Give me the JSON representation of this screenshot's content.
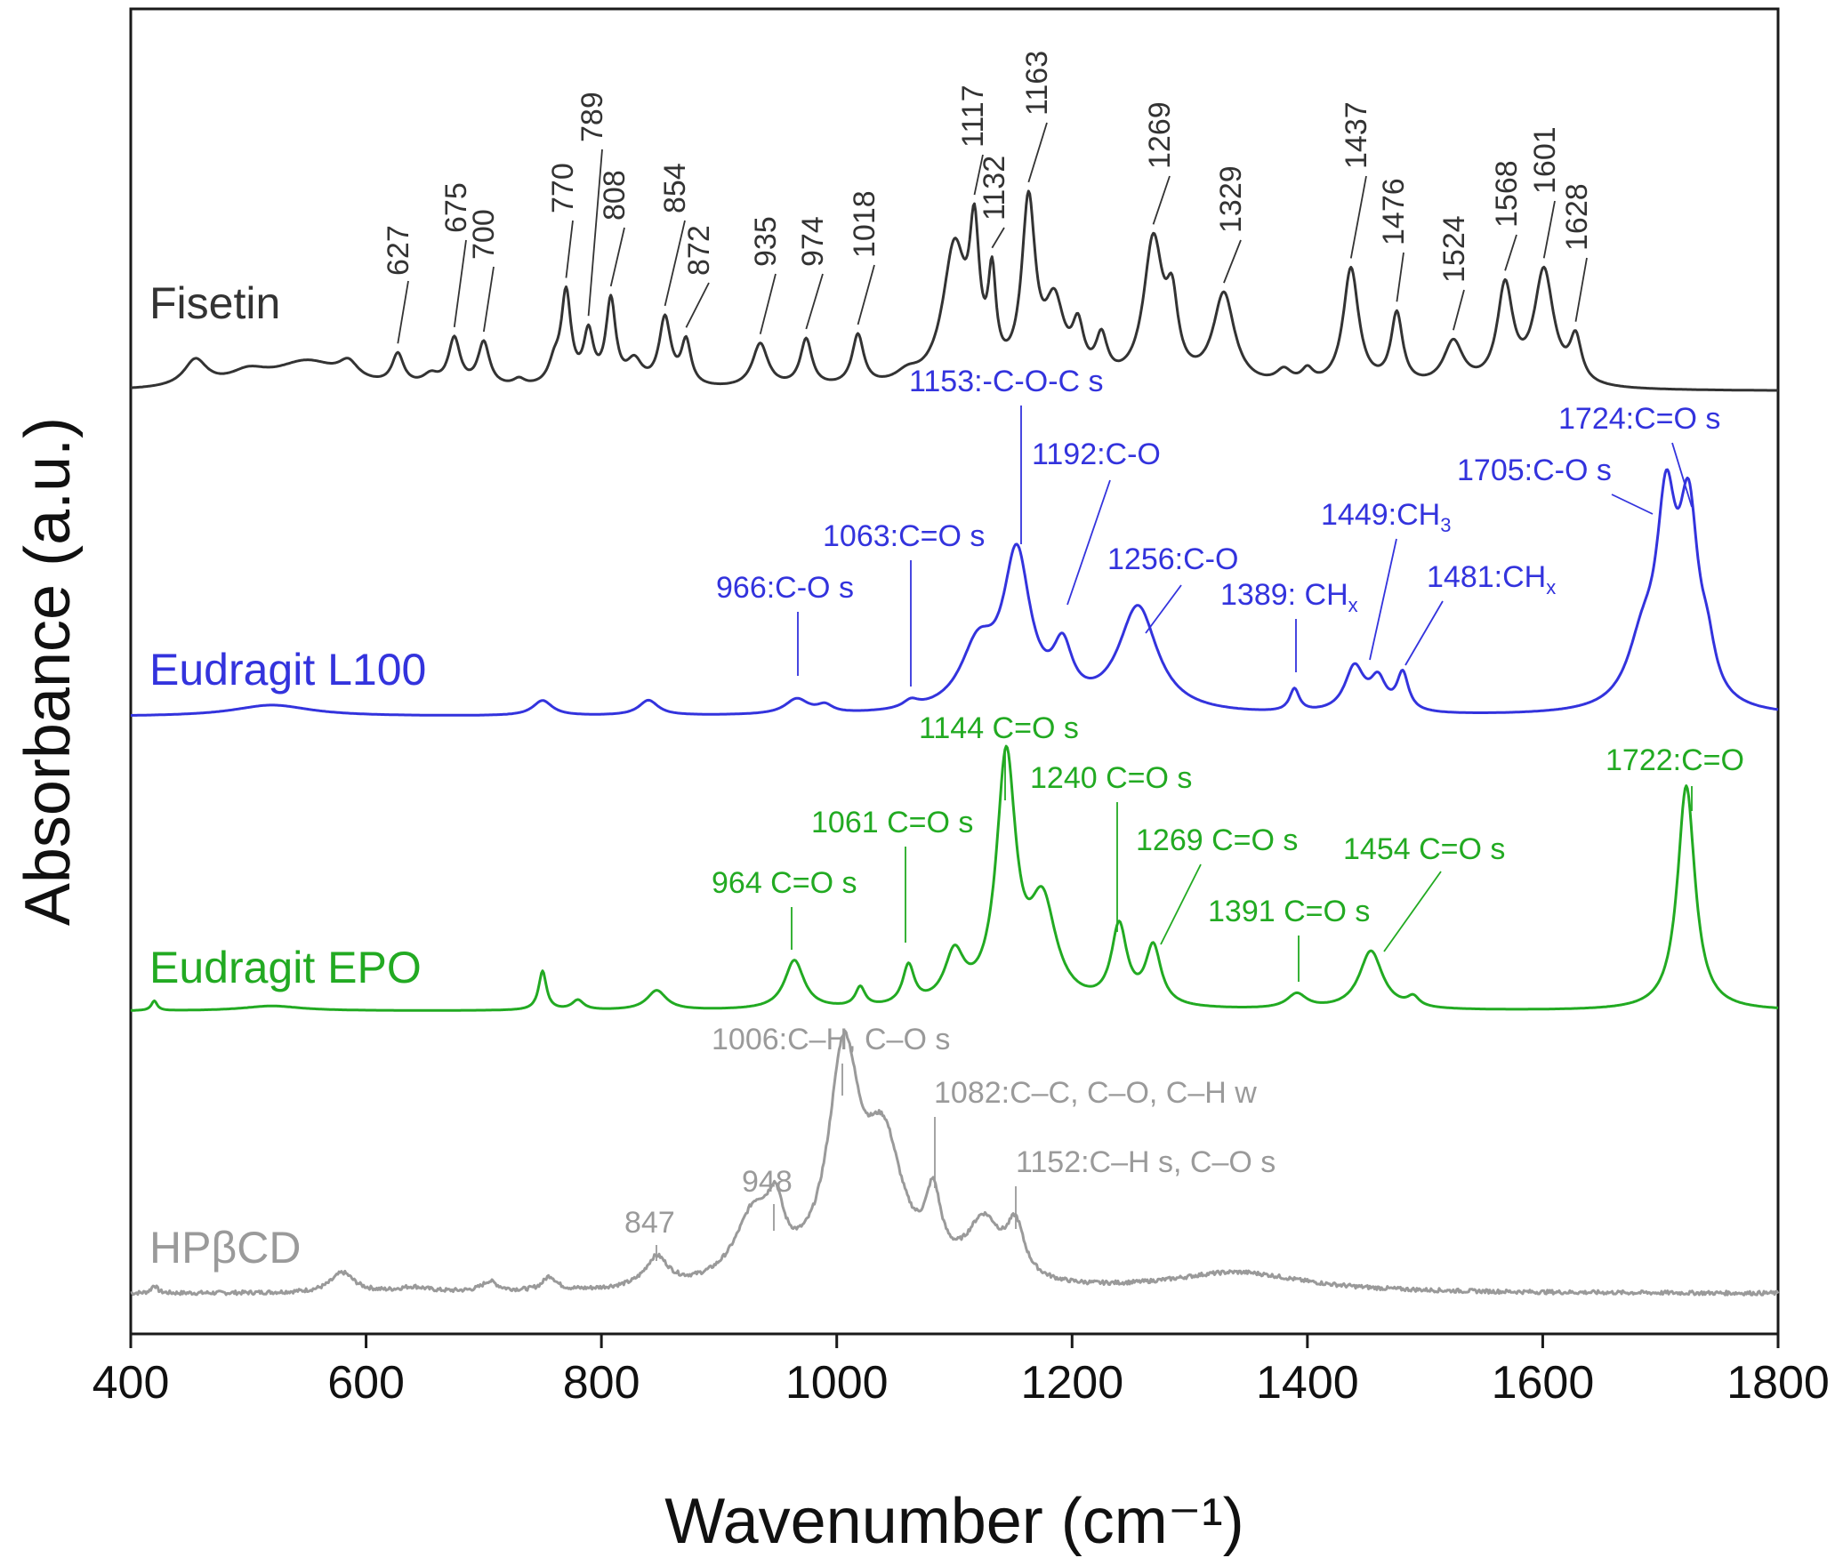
{
  "chart_data": {
    "type": "line",
    "title": "",
    "xlabel": "Wavenumber (cm⁻¹)",
    "ylabel": "Absorbance (a.u.)",
    "xlim": [
      400,
      1800
    ],
    "xticks": [
      400,
      600,
      800,
      1000,
      1200,
      1400,
      1600,
      1800
    ],
    "grid": false,
    "legend": "inline labels at left of each trace",
    "series": [
      {
        "name": "Fisetin",
        "color": "#333333",
        "baseline": 0.0,
        "noise": 0.0,
        "peaks": [
          [
            455,
            0.08,
            12
          ],
          [
            500,
            0.04,
            20
          ],
          [
            550,
            0.08,
            35
          ],
          [
            585,
            0.05,
            10
          ],
          [
            627,
            0.09,
            6
          ],
          [
            655,
            0.03,
            8
          ],
          [
            675,
            0.14,
            6
          ],
          [
            700,
            0.13,
            6
          ],
          [
            730,
            0.02,
            6
          ],
          [
            760,
            0.06,
            6
          ],
          [
            770,
            0.27,
            5
          ],
          [
            789,
            0.15,
            5
          ],
          [
            808,
            0.25,
            5
          ],
          [
            828,
            0.07,
            8
          ],
          [
            854,
            0.2,
            6
          ],
          [
            872,
            0.13,
            5
          ],
          [
            935,
            0.13,
            8
          ],
          [
            974,
            0.14,
            6
          ],
          [
            1018,
            0.15,
            6
          ],
          [
            1060,
            0.03,
            12
          ],
          [
            1100,
            0.4,
            12
          ],
          [
            1117,
            0.38,
            5
          ],
          [
            1132,
            0.27,
            4
          ],
          [
            1163,
            0.52,
            7
          ],
          [
            1185,
            0.22,
            10
          ],
          [
            1205,
            0.14,
            6
          ],
          [
            1225,
            0.12,
            6
          ],
          [
            1269,
            0.42,
            10
          ],
          [
            1285,
            0.2,
            6
          ],
          [
            1329,
            0.27,
            11
          ],
          [
            1380,
            0.04,
            8
          ],
          [
            1400,
            0.04,
            6
          ],
          [
            1437,
            0.35,
            8
          ],
          [
            1476,
            0.21,
            6
          ],
          [
            1524,
            0.13,
            10
          ],
          [
            1568,
            0.29,
            8
          ],
          [
            1601,
            0.34,
            10
          ],
          [
            1628,
            0.13,
            6
          ]
        ],
        "annotations": [
          {
            "x": 627,
            "text": "627"
          },
          {
            "x": 675,
            "text": "675"
          },
          {
            "x": 700,
            "text": "700"
          },
          {
            "x": 770,
            "text": "770"
          },
          {
            "x": 789,
            "text": "789"
          },
          {
            "x": 808,
            "text": "808"
          },
          {
            "x": 854,
            "text": "854"
          },
          {
            "x": 872,
            "text": "872"
          },
          {
            "x": 935,
            "text": "935"
          },
          {
            "x": 974,
            "text": "974"
          },
          {
            "x": 1018,
            "text": "1018"
          },
          {
            "x": 1117,
            "text": "1117"
          },
          {
            "x": 1132,
            "text": "1132"
          },
          {
            "x": 1163,
            "text": "1163"
          },
          {
            "x": 1269,
            "text": "1269"
          },
          {
            "x": 1329,
            "text": "1329"
          },
          {
            "x": 1437,
            "text": "1437"
          },
          {
            "x": 1476,
            "text": "1476"
          },
          {
            "x": 1524,
            "text": "1524"
          },
          {
            "x": 1568,
            "text": "1568"
          },
          {
            "x": 1601,
            "text": "1601"
          },
          {
            "x": 1628,
            "text": "1628"
          }
        ]
      },
      {
        "name": "Eudragit L100",
        "color": "#3333dd",
        "baseline": 0.0,
        "noise": 0.0,
        "peaks": [
          [
            520,
            0.015,
            40
          ],
          [
            750,
            0.02,
            10
          ],
          [
            840,
            0.02,
            10
          ],
          [
            966,
            0.02,
            12
          ],
          [
            990,
            0.01,
            8
          ],
          [
            1063,
            0.01,
            8
          ],
          [
            1120,
            0.08,
            18
          ],
          [
            1153,
            0.2,
            14
          ],
          [
            1192,
            0.07,
            10
          ],
          [
            1256,
            0.14,
            20
          ],
          [
            1389,
            0.03,
            5
          ],
          [
            1440,
            0.06,
            10
          ],
          [
            1460,
            0.04,
            8
          ],
          [
            1481,
            0.05,
            6
          ],
          [
            1685,
            0.08,
            16
          ],
          [
            1705,
            0.24,
            10
          ],
          [
            1724,
            0.24,
            10
          ],
          [
            1740,
            0.05,
            8
          ]
        ],
        "annotations": [
          {
            "x": 966,
            "text": "966:C-O s"
          },
          {
            "x": 1063,
            "text": "1063:C=O s"
          },
          {
            "x": 1153,
            "text": "1153:-C-O-C s"
          },
          {
            "x": 1192,
            "text": "1192:C-O"
          },
          {
            "x": 1256,
            "text": "1256:C-O"
          },
          {
            "x": 1389,
            "text": "1389: CH"
          },
          {
            "x": 1449,
            "text": "1449:CH"
          },
          {
            "x": 1481,
            "text": "1481:CH"
          },
          {
            "x": 1705,
            "text": "1705:C-O s"
          },
          {
            "x": 1724,
            "text": "1724:C=O s"
          }
        ]
      },
      {
        "name": "Eudragit EPO",
        "color": "#22aa22",
        "baseline": 0.0,
        "noise": 0.0,
        "peaks": [
          [
            420,
            0.01,
            3
          ],
          [
            520,
            0.005,
            30
          ],
          [
            750,
            0.04,
            4
          ],
          [
            780,
            0.01,
            6
          ],
          [
            847,
            0.02,
            10
          ],
          [
            964,
            0.05,
            10
          ],
          [
            1020,
            0.02,
            5
          ],
          [
            1061,
            0.04,
            6
          ],
          [
            1100,
            0.05,
            10
          ],
          [
            1144,
            0.25,
            10
          ],
          [
            1175,
            0.1,
            14
          ],
          [
            1240,
            0.08,
            8
          ],
          [
            1269,
            0.06,
            8
          ],
          [
            1391,
            0.015,
            10
          ],
          [
            1454,
            0.06,
            12
          ],
          [
            1490,
            0.01,
            6
          ],
          [
            1722,
            0.23,
            9
          ]
        ],
        "annotations": [
          {
            "x": 964,
            "text": "964 C=O s"
          },
          {
            "x": 1061,
            "text": "1061 C=O s"
          },
          {
            "x": 1144,
            "text": "1144 C=O s"
          },
          {
            "x": 1240,
            "text": "1240 C=O s"
          },
          {
            "x": 1269,
            "text": "1269 C=O s"
          },
          {
            "x": 1391,
            "text": "1391 C=O s"
          },
          {
            "x": 1454,
            "text": "1454 C=O s"
          },
          {
            "x": 1722,
            "text": "1722:C=O"
          }
        ]
      },
      {
        "name": "HPβCD",
        "color": "#9a9a9a",
        "baseline": 0.0,
        "noise": 0.004,
        "peaks": [
          [
            420,
            0.008,
            3
          ],
          [
            580,
            0.02,
            12
          ],
          [
            640,
            0.005,
            15
          ],
          [
            705,
            0.01,
            8
          ],
          [
            756,
            0.014,
            7
          ],
          [
            847,
            0.03,
            12
          ],
          [
            930,
            0.07,
            20
          ],
          [
            948,
            0.05,
            8
          ],
          [
            1006,
            0.22,
            16
          ],
          [
            1040,
            0.13,
            20
          ],
          [
            1082,
            0.07,
            8
          ],
          [
            1125,
            0.06,
            18
          ],
          [
            1152,
            0.05,
            9
          ],
          [
            1340,
            0.02,
            70
          ]
        ],
        "annotations": [
          {
            "x": 847,
            "text": "847"
          },
          {
            "x": 948,
            "text": "948"
          },
          {
            "x": 1006,
            "text": "1006:C–H, C–O s"
          },
          {
            "x": 1082,
            "text": "1082:C–C, C–O, C–H w"
          },
          {
            "x": 1152,
            "text": "1152:C–H s, C–O s"
          }
        ]
      }
    ],
    "subscripts": {
      "1389": "x",
      "1449": "3",
      "1481": "x"
    }
  }
}
